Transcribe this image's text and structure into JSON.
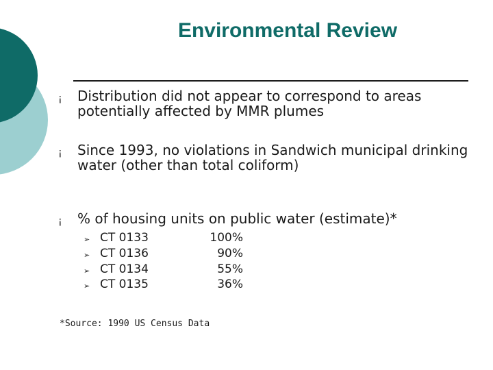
{
  "slide": {
    "title": "Environmental Review",
    "bullet_marker": "¡",
    "bullets": [
      {
        "text": "Distribution did not appear to correspond to areas potentially affected by MMR plumes"
      },
      {
        "text": "Since 1993, no violations in Sandwich municipal drinking water (other than total coliform)"
      },
      {
        "text": "% of housing units on public water (estimate)*"
      }
    ],
    "sub_marker": "➢",
    "sub_items": [
      {
        "tract": "CT 0133",
        "percent": "100%"
      },
      {
        "tract": "CT 0136",
        "percent": "90%"
      },
      {
        "tract": "CT 0134",
        "percent": "55%"
      },
      {
        "tract": "CT 0135",
        "percent": "36%"
      }
    ],
    "source_note": "*Source: 1990 US Census Data"
  },
  "colors": {
    "title": "#0f6b67",
    "deco_dark": "#0f6b67",
    "deco_light": "#9ccfd0",
    "text": "#1a1a1a"
  }
}
